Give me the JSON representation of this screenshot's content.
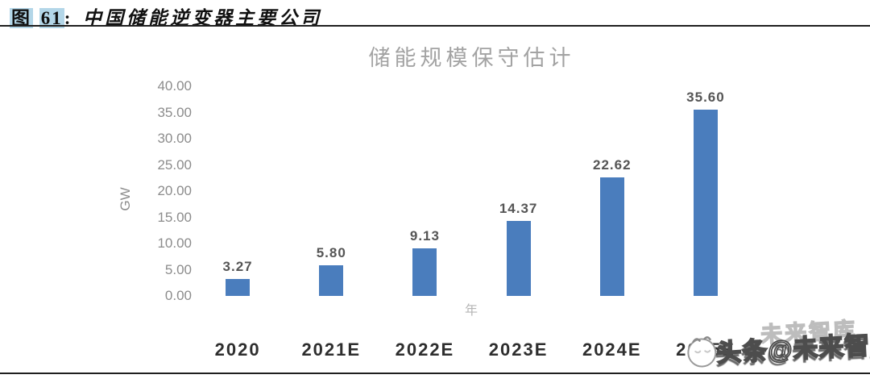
{
  "header": {
    "figure_label": "图",
    "figure_number": "61",
    "separator": ":",
    "title": "中国储能逆变器主要公司"
  },
  "chart_data": {
    "type": "bar",
    "title": "储能规模保守估计",
    "categories": [
      "2020",
      "2021E",
      "2022E",
      "2023E",
      "2024E",
      "2025E"
    ],
    "values": [
      3.27,
      5.8,
      9.13,
      14.37,
      22.62,
      35.6
    ],
    "value_labels": [
      "3.27",
      "5.80",
      "9.13",
      "14.37",
      "22.62",
      "35.60"
    ],
    "xlabel": "年",
    "ylabel": "GW",
    "ylim": [
      0,
      40
    ],
    "ytick_labels": [
      "40.00",
      "35.00",
      "30.00",
      "25.00",
      "20.00",
      "15.00",
      "10.00",
      "5.00",
      "0.00"
    ],
    "bar_color": "#4a7dbd",
    "grid": false,
    "legend": false,
    "data_labels": true
  },
  "watermark": {
    "logo": "toutiao-face-icon",
    "ghost_text": "未来智库",
    "text": "头条@未来智库"
  },
  "colors": {
    "header_highlight": "#b3d6e8",
    "bar_blue": "#4a7dbd",
    "chart_title_gray": "#a3a3a3",
    "axis_tick_gray": "#8c8c8c",
    "category_label_dark": "#2e2e2e",
    "divider_dark": "#1f1f1f"
  }
}
